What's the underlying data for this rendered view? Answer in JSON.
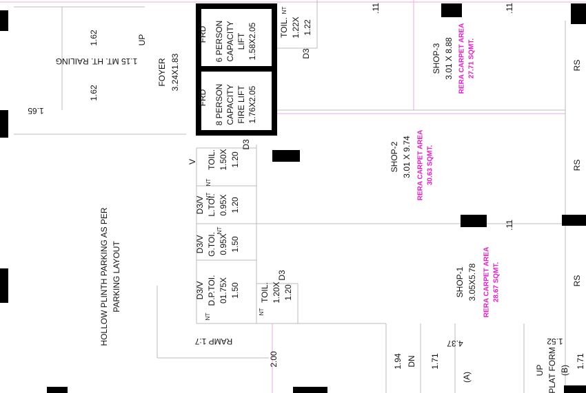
{
  "labels": [
    {
      "lines": [
        "1.62"
      ]
    },
    {
      "lines": [
        "1.62"
      ]
    },
    {
      "lines": [
        "1.15 MT. HT. RAILING"
      ]
    },
    {
      "lines": [
        "1.65"
      ]
    },
    {
      "lines": [
        "UP"
      ]
    },
    {
      "lines": [
        "FOYER",
        "3.24X1.83"
      ]
    },
    {
      "lines": [
        "FRD"
      ]
    },
    {
      "lines": [
        "6 PERSON",
        "CAPACITY",
        "LIFT",
        "1.58X2.05"
      ]
    },
    {
      "lines": [
        "FRD"
      ]
    },
    {
      "lines": [
        "8 PERSON",
        "CAPACITY",
        "FIRE LIFT",
        "1.76X2.05"
      ]
    },
    {
      "lines": [
        "NT"
      ]
    },
    {
      "lines": [
        "TOIL.",
        "1.22X",
        "1.22"
      ]
    },
    {
      "lines": [
        "D3"
      ]
    },
    {
      "lines": [
        ".11"
      ]
    },
    {
      "lines": [
        ".11"
      ]
    },
    {
      "lines": [
        "SHOP-3",
        "3.01 X 8.88"
      ]
    },
    {
      "lines": [
        "RERA CARPET AREA",
        "27.71 SQMT."
      ]
    },
    {
      "lines": [
        "RS"
      ]
    },
    {
      "lines": [
        "RS"
      ]
    },
    {
      "lines": [
        "RS"
      ]
    },
    {
      "lines": [
        "D3"
      ]
    },
    {
      "lines": [
        "V"
      ]
    },
    {
      "lines": [
        "NT"
      ]
    },
    {
      "lines": [
        "TOIL.",
        "1.50X",
        "1.20"
      ]
    },
    {
      "lines": [
        "SHOP-2",
        "3.01 X 9.74"
      ]
    },
    {
      "lines": [
        "RERA CARPET AREA",
        "30.63 SQMT."
      ]
    },
    {
      "lines": [
        "NT"
      ]
    },
    {
      "lines": [
        "D3/V",
        "L.TOI.",
        "0.95X",
        "1.20"
      ]
    },
    {
      "lines": [
        ".11"
      ]
    },
    {
      "lines": [
        "NT"
      ]
    },
    {
      "lines": [
        "D3/V",
        "G.TOI.",
        "0.95X",
        "1.50"
      ]
    },
    {
      "lines": [
        "SHOP-1",
        "3.05X5.78"
      ]
    },
    {
      "lines": [
        "RERA CARPET AREA",
        "28.67 SQMT."
      ]
    },
    {
      "lines": [
        "HOLLOW PLINTH PARKING AS PER",
        "PARKING LAYOUT"
      ]
    },
    {
      "lines": [
        "D3/V",
        "D.P.TOI.",
        "01.75X",
        "1.50"
      ]
    },
    {
      "lines": [
        "NT"
      ]
    },
    {
      "lines": [
        "NT"
      ]
    },
    {
      "lines": [
        "TOIL.",
        "1.20X",
        "1.20"
      ]
    },
    {
      "lines": [
        "D3"
      ]
    },
    {
      "lines": [
        "RAMP 1:7"
      ]
    },
    {
      "lines": [
        "2.00"
      ]
    },
    {
      "lines": [
        "1.94"
      ]
    },
    {
      "lines": [
        "DN"
      ]
    },
    {
      "lines": [
        "1.71"
      ]
    },
    {
      "lines": [
        "4.37"
      ]
    },
    {
      "lines": [
        "(A)"
      ]
    },
    {
      "lines": [
        "UP",
        "PLAT FORM",
        "(B)"
      ]
    },
    {
      "lines": [
        "1.52"
      ]
    },
    {
      "lines": [
        "1.71"
      ]
    }
  ]
}
